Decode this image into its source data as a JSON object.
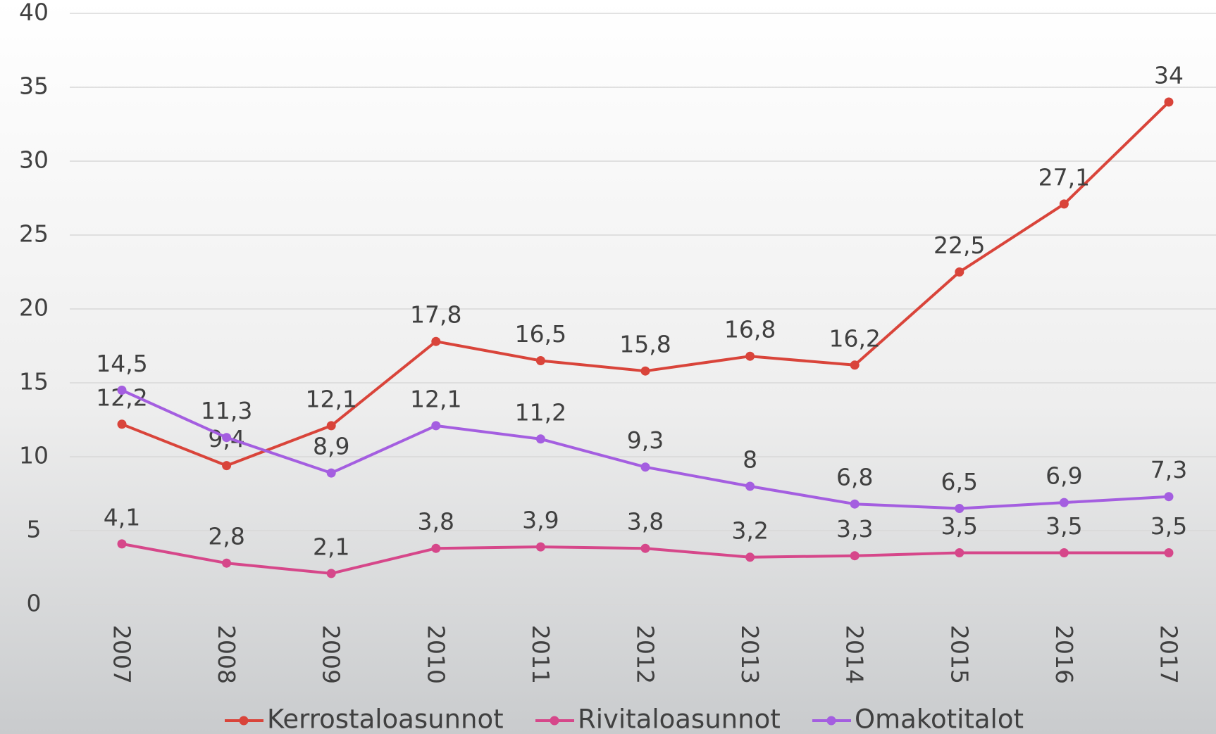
{
  "chart_data": {
    "type": "line",
    "categories": [
      "2007",
      "2008",
      "2009",
      "2010",
      "2011",
      "2012",
      "2013",
      "2014",
      "2015",
      "2016",
      "2017"
    ],
    "series": [
      {
        "name": "Kerrostaloasunnot",
        "color": "#d9443a",
        "values": [
          12.2,
          9.4,
          12.1,
          17.8,
          16.5,
          15.8,
          16.8,
          16.2,
          22.5,
          27.1,
          34
        ],
        "value_labels": [
          "12,2",
          "9,4",
          "12,1",
          "17,8",
          "16,5",
          "15,8",
          "16,8",
          "16,2",
          "22,5",
          "27,1",
          "34"
        ]
      },
      {
        "name": "Rivitaloasunnot",
        "color": "#d6478a",
        "values": [
          4.1,
          2.8,
          2.1,
          3.8,
          3.9,
          3.8,
          3.2,
          3.3,
          3.5,
          3.5,
          3.5
        ],
        "value_labels": [
          "4,1",
          "2,8",
          "2,1",
          "3,8",
          "3,9",
          "3,8",
          "3,2",
          "3,3",
          "3,5",
          "3,5",
          "3,5"
        ]
      },
      {
        "name": "Omakotitalot",
        "color": "#a45ee0",
        "values": [
          14.5,
          11.3,
          8.9,
          12.1,
          11.2,
          9.3,
          8,
          6.8,
          6.5,
          6.9,
          7.3
        ],
        "value_labels": [
          "14,5",
          "11,3",
          "8,9",
          "12,1",
          "11,2",
          "9,3",
          "8",
          "6,8",
          "6,5",
          "6,9",
          "7,3"
        ]
      }
    ],
    "ylim": [
      0,
      40
    ],
    "yticks": [
      0,
      5,
      10,
      15,
      20,
      25,
      30,
      35,
      40
    ],
    "grid": true,
    "legend": "bottom"
  }
}
